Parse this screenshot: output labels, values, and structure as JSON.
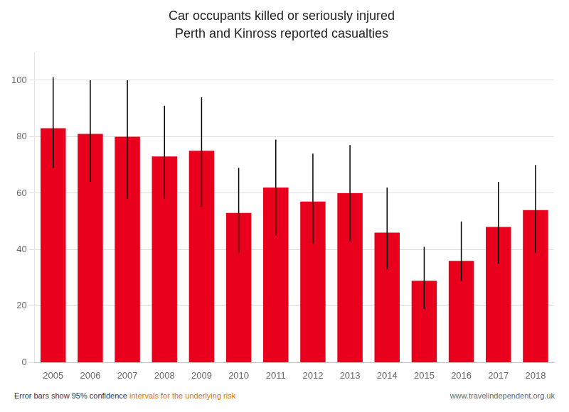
{
  "chart_data": {
    "type": "bar",
    "title": "Car occupants killed or seriously injured",
    "subtitle": "Perth and Kinross reported casualties",
    "categories": [
      "2005",
      "2006",
      "2007",
      "2008",
      "2009",
      "2010",
      "2011",
      "2012",
      "2013",
      "2014",
      "2015",
      "2016",
      "2017",
      "2018"
    ],
    "values": [
      83,
      81,
      80,
      73,
      75,
      53,
      62,
      57,
      60,
      46,
      29,
      36,
      48,
      54
    ],
    "err_low": [
      14,
      17,
      22,
      15,
      20,
      14,
      17,
      15,
      17,
      13,
      10,
      7,
      13,
      15
    ],
    "err_high": [
      18,
      19,
      20,
      18,
      19,
      16,
      17,
      17,
      17,
      16,
      12,
      14,
      16,
      16
    ],
    "color": "#e8001c",
    "ylim": [
      0,
      110
    ],
    "yticks": [
      0,
      20,
      40,
      60,
      80,
      100
    ],
    "grid": true,
    "annotations": [
      {
        "text": "Error bars show 95% confidence ",
        "color": "#333333"
      },
      {
        "text": "intervals for the underlying risk",
        "color": "#e07000"
      },
      {
        "text": "www.travelindependent.org.uk",
        "color": "#666666"
      }
    ]
  }
}
